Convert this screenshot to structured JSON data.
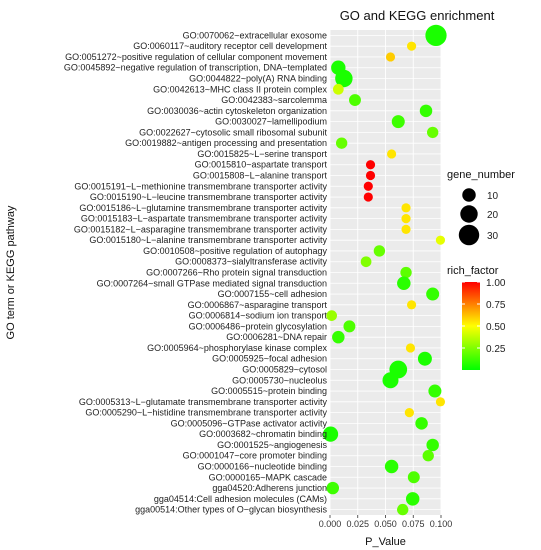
{
  "chart_data": {
    "type": "scatter",
    "title": "GO and KEGG enrichment",
    "xlabel": "P_Value",
    "ylabel": "GO term or KEGG pathway",
    "xlim": [
      0.0,
      0.1
    ],
    "xticks": [
      0.0,
      0.025,
      0.05,
      0.075,
      0.1
    ],
    "xtick_labels": [
      "0.000",
      "0.025",
      "0.050",
      "0.075",
      "0.100"
    ],
    "grid": true,
    "legend_size": {
      "title": "gene_number",
      "values": [
        10,
        20,
        30
      ],
      "labels": [
        "10",
        "20",
        "30"
      ]
    },
    "legend_color": {
      "title": "rich_factor",
      "range": [
        0.0,
        1.0
      ],
      "ticks": [
        0.25,
        0.5,
        0.75,
        1.0
      ],
      "tick_labels": [
        "0.25",
        "0.50",
        "0.75",
        "1.00"
      ],
      "colors": [
        "#00ff00",
        "#ffff00",
        "#ff0000"
      ]
    },
    "categories": [
      "GO:0070062~extracellular exosome",
      "GO:0060117~auditory receptor cell development",
      "GO:0051272~positive regulation of cellular component movement",
      "GO:0045892~negative regulation of transcription, DNA−templated",
      "GO:0044822~poly(A) RNA binding",
      "GO:0042613~MHC class II protein complex",
      "GO:0042383~sarcolemma",
      "GO:0030036~actin cytoskeleton organization",
      "GO:0030027~lamellipodium",
      "GO:0022627~cytosolic small ribosomal subunit",
      "GO:0019882~antigen processing and presentation",
      "GO:0015825~L−serine transport",
      "GO:0015810~aspartate transport",
      "GO:0015808~L−alanine transport",
      "GO:0015191~L−methionine transmembrane transporter activity",
      "GO:0015190~L−leucine transmembrane transporter activity",
      "GO:0015186~L−glutamine transmembrane transporter activity",
      "GO:0015183~L−aspartate transmembrane transporter activity",
      "GO:0015182~L−asparagine transmembrane transporter activity",
      "GO:0015180~L−alanine transmembrane transporter activity",
      "GO:0010508~positive regulation of autophagy",
      "GO:0008373~sialyltransferase activity",
      "GO:0007266~Rho protein signal transduction",
      "GO:0007264~small GTPase mediated signal transduction",
      "GO:0007155~cell adhesion",
      "GO:0006867~asparagine transport",
      "GO:0006814~sodium ion transport",
      "GO:0006486~protein glycosylation",
      "GO:0006281~DNA repair",
      "GO:0005964~phosphorylase kinase complex",
      "GO:0005925~focal adhesion",
      "GO:0005829~cytosol",
      "GO:0005730~nucleolus",
      "GO:0005515~protein binding",
      "GO:0005313~L−glutamate transmembrane transporter activity",
      "GO:0005290~L−histidine transmembrane transporter activity",
      "GO:0005096~GTPase activator activity",
      "GO:0003682~chromatin binding",
      "GO:0001525~angiogenesis",
      "GO:0001047~core promoter binding",
      "GO:0000166~nucleotide binding",
      "GO:0000165~MAPK cascade",
      "gga04520:Adherens junction",
      "gga04514:Cell adhesion molecules (CAMs)",
      "gga00514:Other types of O−glycan biosynthesis"
    ],
    "points": [
      {
        "p_value": 0.0955,
        "gene_number": 33,
        "rich_factor": 0.05
      },
      {
        "p_value": 0.0735,
        "gene_number": 3,
        "rich_factor": 0.55
      },
      {
        "p_value": 0.0545,
        "gene_number": 3,
        "rich_factor": 0.6
      },
      {
        "p_value": 0.0075,
        "gene_number": 12,
        "rich_factor": 0.05
      },
      {
        "p_value": 0.0125,
        "gene_number": 20,
        "rich_factor": 0.05
      },
      {
        "p_value": 0.0075,
        "gene_number": 5,
        "rich_factor": 0.4
      },
      {
        "p_value": 0.0225,
        "gene_number": 7,
        "rich_factor": 0.15
      },
      {
        "p_value": 0.0865,
        "gene_number": 8,
        "rich_factor": 0.1
      },
      {
        "p_value": 0.0615,
        "gene_number": 9,
        "rich_factor": 0.12
      },
      {
        "p_value": 0.0925,
        "gene_number": 6,
        "rich_factor": 0.2
      },
      {
        "p_value": 0.0105,
        "gene_number": 6,
        "rich_factor": 0.2
      },
      {
        "p_value": 0.0555,
        "gene_number": 3,
        "rich_factor": 0.55
      },
      {
        "p_value": 0.0365,
        "gene_number": 3,
        "rich_factor": 1.0
      },
      {
        "p_value": 0.0365,
        "gene_number": 3,
        "rich_factor": 1.0
      },
      {
        "p_value": 0.0345,
        "gene_number": 3,
        "rich_factor": 1.0
      },
      {
        "p_value": 0.0345,
        "gene_number": 3,
        "rich_factor": 1.0
      },
      {
        "p_value": 0.0685,
        "gene_number": 3,
        "rich_factor": 0.55
      },
      {
        "p_value": 0.0685,
        "gene_number": 3,
        "rich_factor": 0.55
      },
      {
        "p_value": 0.0685,
        "gene_number": 3,
        "rich_factor": 0.55
      },
      {
        "p_value": 0.0995,
        "gene_number": 3,
        "rich_factor": 0.45
      },
      {
        "p_value": 0.0445,
        "gene_number": 6,
        "rich_factor": 0.2
      },
      {
        "p_value": 0.0325,
        "gene_number": 5,
        "rich_factor": 0.25
      },
      {
        "p_value": 0.0685,
        "gene_number": 6,
        "rich_factor": 0.18
      },
      {
        "p_value": 0.0665,
        "gene_number": 10,
        "rich_factor": 0.08
      },
      {
        "p_value": 0.0925,
        "gene_number": 9,
        "rich_factor": 0.1
      },
      {
        "p_value": 0.0735,
        "gene_number": 3,
        "rich_factor": 0.55
      },
      {
        "p_value": 0.0015,
        "gene_number": 5,
        "rich_factor": 0.3
      },
      {
        "p_value": 0.0175,
        "gene_number": 7,
        "rich_factor": 0.15
      },
      {
        "p_value": 0.0075,
        "gene_number": 8,
        "rich_factor": 0.1
      },
      {
        "p_value": 0.0725,
        "gene_number": 3,
        "rich_factor": 0.55
      },
      {
        "p_value": 0.0855,
        "gene_number": 11,
        "rich_factor": 0.05
      },
      {
        "p_value": 0.0615,
        "gene_number": 21,
        "rich_factor": 0.05
      },
      {
        "p_value": 0.0545,
        "gene_number": 16,
        "rich_factor": 0.05
      },
      {
        "p_value": 0.0945,
        "gene_number": 9,
        "rich_factor": 0.1
      },
      {
        "p_value": 0.0995,
        "gene_number": 3,
        "rich_factor": 0.55
      },
      {
        "p_value": 0.0715,
        "gene_number": 3,
        "rich_factor": 0.55
      },
      {
        "p_value": 0.0825,
        "gene_number": 8,
        "rich_factor": 0.1
      },
      {
        "p_value": 0.0005,
        "gene_number": 14,
        "rich_factor": 0.05
      },
      {
        "p_value": 0.0925,
        "gene_number": 8,
        "rich_factor": 0.1
      },
      {
        "p_value": 0.0885,
        "gene_number": 6,
        "rich_factor": 0.18
      },
      {
        "p_value": 0.0555,
        "gene_number": 10,
        "rich_factor": 0.08
      },
      {
        "p_value": 0.0755,
        "gene_number": 7,
        "rich_factor": 0.15
      },
      {
        "p_value": 0.0025,
        "gene_number": 8,
        "rich_factor": 0.12
      },
      {
        "p_value": 0.0745,
        "gene_number": 10,
        "rich_factor": 0.08
      },
      {
        "p_value": 0.0655,
        "gene_number": 6,
        "rich_factor": 0.2
      }
    ]
  }
}
